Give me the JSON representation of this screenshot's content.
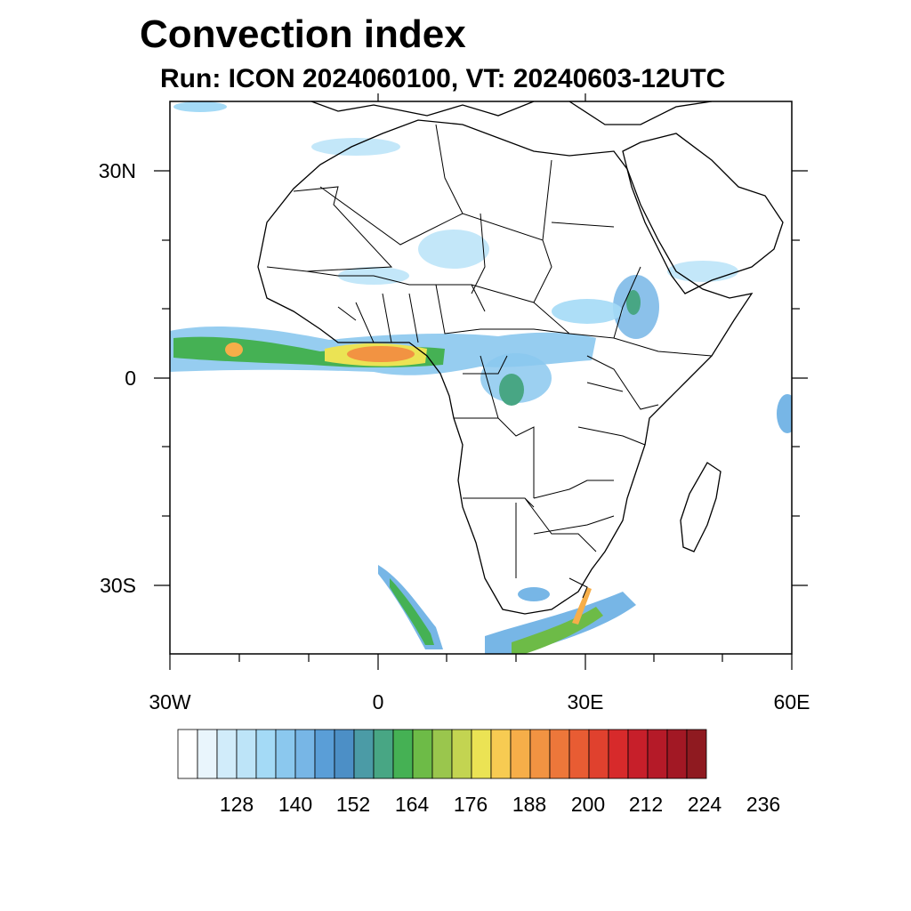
{
  "title": "Convection index",
  "subtitle": "Run: ICON 2024060100,  VT: 20240603-12UTC",
  "map": {
    "region": "Africa",
    "lon_range": [
      -30,
      60
    ],
    "lat_range": [
      -40,
      40
    ],
    "lat_labels": [
      "30N",
      "0",
      "30S"
    ],
    "lon_labels": [
      "30W",
      "0",
      "30E",
      "60E"
    ]
  },
  "colorbar": {
    "colors": [
      "#ffffff",
      "#e9f5fc",
      "#d1ecfa",
      "#bde4f8",
      "#a4daf6",
      "#8bc8ee",
      "#77b6e6",
      "#5a9ed7",
      "#4c8fc6",
      "#4b9ba6",
      "#48a684",
      "#45b154",
      "#6dbb47",
      "#9ac64d",
      "#c3d451",
      "#ebe354",
      "#f7cb52",
      "#f6ae49",
      "#f29342",
      "#ed773a",
      "#e85c33",
      "#e0412e",
      "#d72a2b",
      "#c71f2a",
      "#b51a28",
      "#a21824",
      "#8f1a20"
    ],
    "tick_labels": [
      "128",
      "140",
      "152",
      "164",
      "176",
      "188",
      "200",
      "212",
      "224",
      "236"
    ]
  }
}
